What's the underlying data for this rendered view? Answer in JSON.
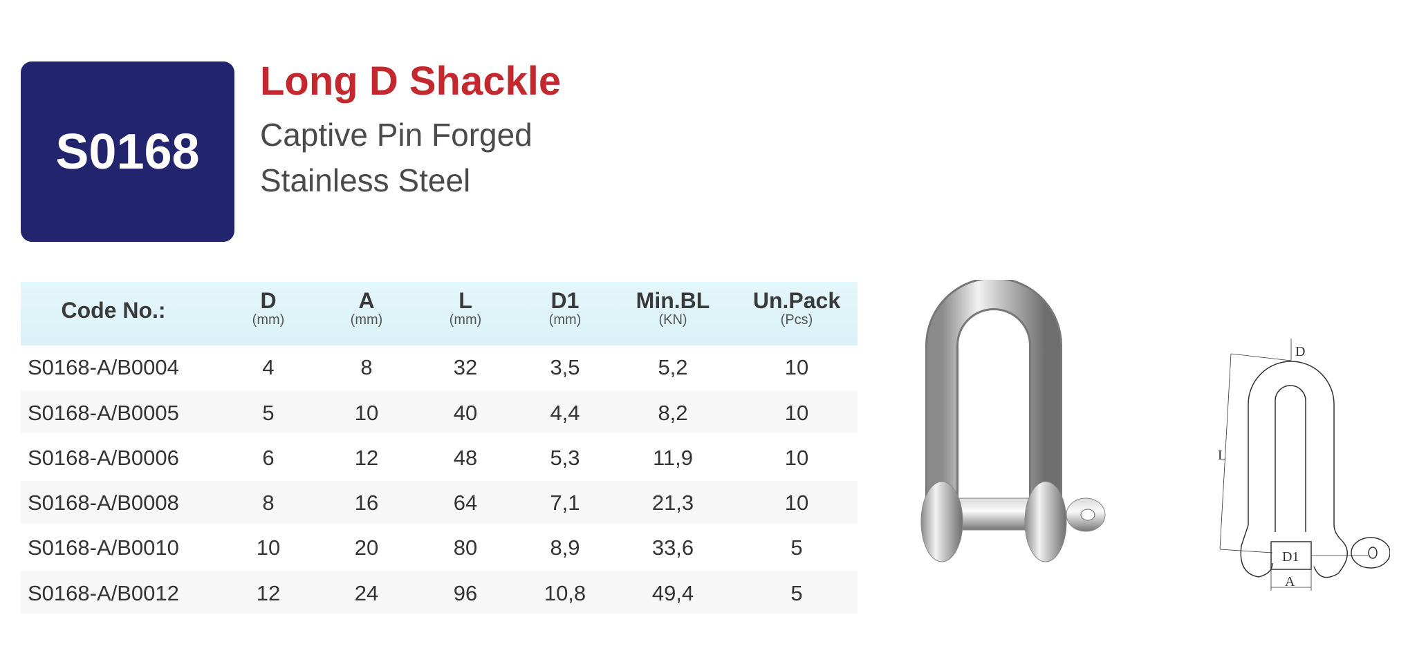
{
  "header": {
    "code": "S0168",
    "title": "Long D Shackle",
    "subtitle_line1": "Captive Pin  Forged",
    "subtitle_line2": "Stainless Steel"
  },
  "table": {
    "columns": [
      {
        "label": "Code No.:",
        "unit": ""
      },
      {
        "label": "D",
        "unit": "(mm)"
      },
      {
        "label": "A",
        "unit": "(mm)"
      },
      {
        "label": "L",
        "unit": "(mm)"
      },
      {
        "label": "D1",
        "unit": "(mm)"
      },
      {
        "label": "Min.BL",
        "unit": "(KN)"
      },
      {
        "label": "Un.Pack",
        "unit": "(Pcs)"
      }
    ],
    "rows": [
      [
        "S0168-A/B0004",
        "4",
        "8",
        "32",
        "3,5",
        "5,2",
        "10"
      ],
      [
        "S0168-A/B0005",
        "5",
        "10",
        "40",
        "4,4",
        "8,2",
        "10"
      ],
      [
        "S0168-A/B0006",
        "6",
        "12",
        "48",
        "5,3",
        "11,9",
        "10"
      ],
      [
        "S0168-A/B0008",
        "8",
        "16",
        "64",
        "7,1",
        "21,3",
        "10"
      ],
      [
        "S0168-A/B0010",
        "10",
        "20",
        "80",
        "8,9",
        "33,6",
        "5"
      ],
      [
        "S0168-A/B0012",
        "12",
        "24",
        "96",
        "10,8",
        "49,4",
        "5"
      ]
    ]
  },
  "diagram": {
    "labels": {
      "D": "D",
      "L": "L",
      "D1": "D1",
      "A": "A"
    }
  },
  "colors": {
    "badge": "#22246e",
    "title": "#c3282e",
    "header_band": "#dff4f8"
  }
}
